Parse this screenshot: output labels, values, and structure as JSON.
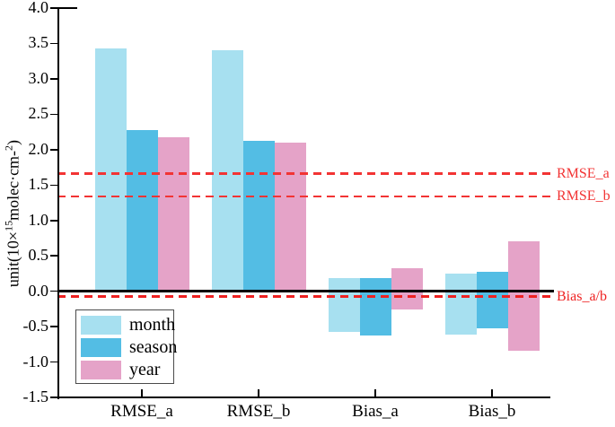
{
  "figure": {
    "ylabel_parts": [
      {
        "text": "unit(10×",
        "sup": false
      },
      {
        "text": "15",
        "sup": true
      },
      {
        "text": "molec·cm-",
        "sup": false
      },
      {
        "text": "2",
        "sup": true
      },
      {
        "text": ")",
        "sup": false
      }
    ]
  },
  "chart_data": {
    "type": "bar",
    "title": "",
    "xlabel": "",
    "ylabel": "unit(10×15molec·cm-2)",
    "categories": [
      "RMSE_a",
      "RMSE_b",
      "Bias_a",
      "Bias_b"
    ],
    "series": [
      {
        "name": "month",
        "color": "#A7E0F0",
        "ranges": [
          [
            0,
            3.43
          ],
          [
            0,
            3.4
          ],
          [
            -0.57,
            0.18
          ],
          [
            -0.61,
            0.25
          ]
        ]
      },
      {
        "name": "season",
        "color": "#53BDE4",
        "ranges": [
          [
            0,
            2.28
          ],
          [
            0,
            2.13
          ],
          [
            -0.63,
            0.19
          ],
          [
            -0.52,
            0.28
          ]
        ]
      },
      {
        "name": "year",
        "color": "#E5A3C8",
        "ranges": [
          [
            0,
            2.17
          ],
          [
            0,
            2.1
          ],
          [
            -0.26,
            0.33
          ],
          [
            -0.84,
            0.7
          ]
        ]
      }
    ],
    "ylim": [
      -1.5,
      4.0
    ],
    "ytick_step": 0.5,
    "grid": false,
    "legend_position": "lower-left",
    "ref_lines": [
      {
        "label": "RMSE_a",
        "value": 1.66,
        "style": "dashed",
        "color": "#F23434",
        "thickness": 2.5
      },
      {
        "label": "RMSE_b",
        "value": 1.34,
        "style": "dashed",
        "color": "#F23434",
        "thickness": 2.5
      },
      {
        "label": "",
        "value": 0.0,
        "style": "solid",
        "color": "#000000",
        "thickness": 2.5
      },
      {
        "label": "Bias_a/b",
        "value": -0.08,
        "style": "dashed",
        "color": "#EE2222",
        "thickness": 3
      }
    ]
  }
}
